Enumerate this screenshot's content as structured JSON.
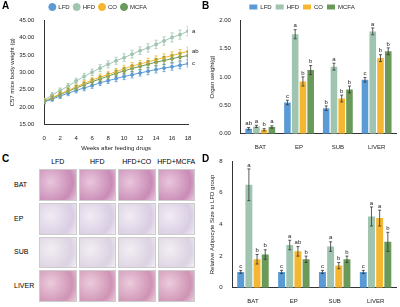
{
  "chart_data": [
    {
      "panel": "A",
      "type": "line",
      "x_label": "Weeks after feeding drugs",
      "y_label": "C57 mice body weight (g)",
      "x": [
        0,
        1,
        2,
        3,
        4,
        5,
        6,
        7,
        8,
        9,
        10,
        11,
        12,
        13,
        14,
        15,
        16,
        17,
        18
      ],
      "xlim": [
        0,
        18
      ],
      "xticks": [
        0,
        2,
        4,
        6,
        8,
        10,
        12,
        14,
        16,
        18
      ],
      "ylim": [
        15,
        45
      ],
      "yticks": [
        {
          "value": 15,
          "label": "15.00"
        },
        {
          "value": 20,
          "label": "20.00"
        },
        {
          "value": 25,
          "label": "25.00"
        },
        {
          "value": 30,
          "label": "30.00"
        },
        {
          "value": 35,
          "label": "35.00"
        },
        {
          "value": 40,
          "label": "40.00"
        },
        {
          "value": 45,
          "label": "45.00"
        }
      ],
      "grid": false,
      "legend": "top",
      "marker": "circle",
      "series": [
        {
          "name": "LFD",
          "color": "#5b9bd5",
          "letter": "c",
          "values": [
            21.5,
            22.3,
            23.2,
            24.0,
            24.8,
            25.5,
            26.2,
            27.0,
            27.6,
            28.2,
            28.8,
            29.3,
            29.8,
            30.3,
            30.8,
            31.2,
            31.6,
            32.0,
            32.5
          ],
          "errors": [
            0.6,
            0.6,
            0.7,
            0.7,
            0.7,
            0.8,
            0.8,
            0.8,
            0.8,
            0.9,
            0.9,
            0.9,
            0.9,
            1.0,
            1.0,
            1.0,
            1.0,
            1.0,
            1.0
          ]
        },
        {
          "name": "HFD",
          "color": "#9fc5b0",
          "letter": "a",
          "values": [
            22.0,
            23.5,
            24.8,
            26.0,
            27.5,
            28.8,
            30.0,
            31.2,
            32.3,
            33.3,
            34.2,
            35.2,
            36.2,
            37.0,
            38.0,
            39.0,
            40.0,
            40.8,
            41.8
          ],
          "errors": [
            0.6,
            0.7,
            0.7,
            0.8,
            0.8,
            0.9,
            0.9,
            1.0,
            1.0,
            1.0,
            1.1,
            1.1,
            1.1,
            1.2,
            1.2,
            1.2,
            1.3,
            1.3,
            1.3
          ]
        },
        {
          "name": "CO",
          "color": "#f5b731",
          "letter": "ab",
          "values": [
            21.8,
            22.8,
            23.8,
            24.8,
            25.8,
            26.8,
            27.8,
            28.6,
            29.4,
            30.2,
            31.0,
            31.8,
            32.4,
            33.0,
            33.6,
            34.2,
            34.8,
            35.4,
            36.0
          ],
          "errors": [
            0.6,
            0.6,
            0.7,
            0.7,
            0.8,
            0.8,
            0.8,
            0.9,
            0.9,
            0.9,
            1.0,
            1.0,
            1.0,
            1.0,
            1.1,
            1.1,
            1.1,
            1.1,
            1.2
          ]
        },
        {
          "name": "MCFA",
          "color": "#6a9a5a",
          "values": [
            21.6,
            22.6,
            23.6,
            24.6,
            25.5,
            26.4,
            27.3,
            28.1,
            28.9,
            29.7,
            30.4,
            31.1,
            31.7,
            32.3,
            32.9,
            33.4,
            33.9,
            34.4,
            34.8
          ],
          "errors": [
            0.6,
            0.6,
            0.7,
            0.7,
            0.7,
            0.8,
            0.8,
            0.8,
            0.9,
            0.9,
            0.9,
            1.0,
            1.0,
            1.0,
            1.0,
            1.1,
            1.1,
            1.1,
            1.1
          ]
        }
      ]
    },
    {
      "panel": "B",
      "type": "bar",
      "y_label": "Organ weight(g)",
      "categories": [
        "BAT",
        "EP",
        "SUB",
        "LIVER"
      ],
      "ylim": [
        0,
        2
      ],
      "yticks": [
        {
          "value": 0,
          "label": "0.00"
        },
        {
          "value": 0.5,
          "label": "0.50"
        },
        {
          "value": 1,
          "label": "1.00"
        },
        {
          "value": 1.5,
          "label": "1.50"
        },
        {
          "value": 2,
          "label": "2.00"
        }
      ],
      "grid": false,
      "legend": "top",
      "series": [
        {
          "name": "LFD",
          "color": "#5b9bd5",
          "values": [
            0.09,
            0.55,
            0.45,
            0.95
          ],
          "errors": [
            0.02,
            0.04,
            0.04,
            0.04
          ],
          "letters": [
            "ab",
            "c",
            "b",
            "c"
          ]
        },
        {
          "name": "HFD",
          "color": "#9fc5b0",
          "values": [
            0.13,
            1.75,
            1.18,
            1.8
          ],
          "errors": [
            0.02,
            0.08,
            0.06,
            0.06
          ],
          "letters": [
            "a",
            "a",
            "a",
            "a"
          ]
        },
        {
          "name": "CO",
          "color": "#f5b731",
          "values": [
            0.07,
            0.92,
            0.62,
            1.33
          ],
          "errors": [
            0.02,
            0.08,
            0.06,
            0.06
          ],
          "letters": [
            "b",
            "b",
            "b",
            "b"
          ]
        },
        {
          "name": "MCFA",
          "color": "#6a9a5a",
          "values": [
            0.12,
            1.12,
            0.78,
            1.45
          ],
          "errors": [
            0.02,
            0.08,
            0.06,
            0.06
          ],
          "letters": [
            "a",
            "b",
            "b",
            "b"
          ]
        }
      ]
    },
    {
      "panel": "D",
      "type": "bar",
      "y_label": "Relative Adipocyte Size to LFD group",
      "categories": [
        "BAT",
        "EP",
        "SUB",
        "LIVER"
      ],
      "ylim": [
        0,
        8
      ],
      "yticks": [
        0,
        2,
        4,
        6,
        8
      ],
      "grid": false,
      "series": [
        {
          "name": "LFD",
          "color": "#5b9bd5",
          "values": [
            1.0,
            1.0,
            1.0,
            1.0
          ],
          "errors": [
            0.1,
            0.1,
            0.1,
            0.1
          ],
          "letters": [
            "c",
            "c",
            "c",
            "c"
          ]
        },
        {
          "name": "HFD",
          "color": "#9fc5b0",
          "values": [
            6.5,
            2.7,
            2.6,
            4.5
          ],
          "errors": [
            1.0,
            0.3,
            0.3,
            0.6
          ],
          "letters": [
            "a",
            "a",
            "a",
            "a"
          ]
        },
        {
          "name": "CO",
          "color": "#f5b731",
          "values": [
            1.8,
            2.3,
            1.4,
            4.4
          ],
          "errors": [
            0.3,
            0.3,
            0.2,
            0.5
          ],
          "letters": [
            "b",
            "ab",
            "b",
            "a"
          ]
        },
        {
          "name": "MCFA",
          "color": "#6a9a5a",
          "values": [
            2.1,
            1.8,
            1.8,
            2.9
          ],
          "errors": [
            0.3,
            0.2,
            0.2,
            0.6
          ],
          "letters": [
            "b",
            "b",
            "b",
            "b"
          ]
        }
      ]
    }
  ],
  "image_panel": {
    "panel": "C",
    "columns": [
      "LFD",
      "HFD",
      "HFD+CO",
      "HFD+MCFA"
    ],
    "rows": [
      "BAT",
      "EP",
      "SUB",
      "LIVER"
    ]
  }
}
